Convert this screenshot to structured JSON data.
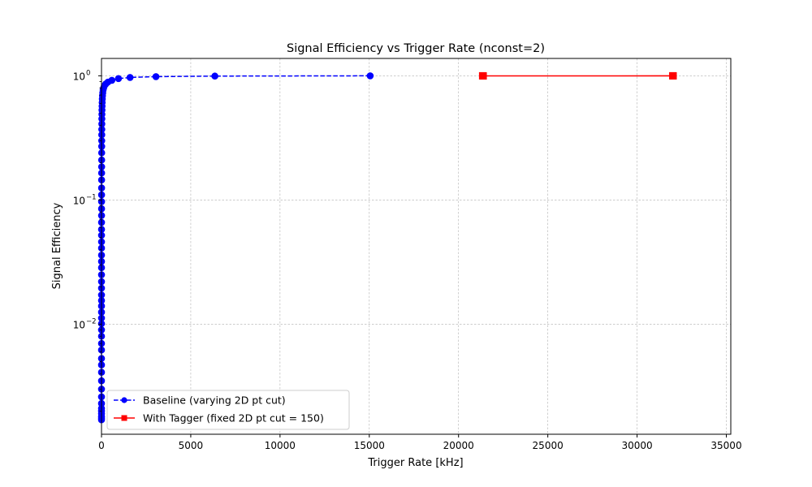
{
  "chart_data": {
    "type": "line",
    "title": "Signal Efficiency vs Trigger Rate (nconst=2)",
    "xlabel": "Trigger Rate [kHz]",
    "ylabel": "Signal Efficiency",
    "xlim": [
      0,
      35250
    ],
    "ylim": [
      0.0013,
      1.38
    ],
    "yscale": "log",
    "grid": true,
    "legend_position": "lower-left",
    "x_ticks": [
      0,
      5000,
      10000,
      15000,
      20000,
      25000,
      30000,
      35000
    ],
    "x_tick_labels": [
      "0",
      "5000",
      "10000",
      "15000",
      "20000",
      "25000",
      "30000",
      "35000"
    ],
    "y_ticks": [
      0.01,
      0.1,
      1
    ],
    "y_tick_labels": [
      "10",
      "10",
      "10"
    ],
    "y_tick_exponents": [
      "−2",
      "−1",
      "0"
    ],
    "series": [
      {
        "name": "Baseline (varying 2D pt cut)",
        "color": "#0000ff",
        "linestyle": "dashed",
        "marker": "circle",
        "x": [
          15050,
          6350,
          3050,
          1600,
          950,
          580,
          360,
          240,
          160,
          120,
          90,
          70,
          55,
          45,
          38,
          32,
          27,
          23,
          20,
          18,
          16,
          14,
          12,
          11,
          10,
          9,
          8,
          7,
          6,
          5,
          4.5,
          4,
          3.5,
          3,
          2.5,
          2,
          1.8,
          1.6,
          1.4,
          1.2,
          1.0,
          0.9,
          0.8,
          0.7,
          0.6,
          0.5,
          0.45,
          0.4,
          0.35,
          0.3,
          0.25,
          0.2,
          0.15,
          0.12,
          0.1,
          0.08,
          0.06,
          0.05,
          0.04,
          0.03,
          0.025,
          0.02,
          0.015,
          0.012,
          0.01,
          0.008,
          0.006,
          0.005
        ],
        "y": [
          1.0,
          0.995,
          0.985,
          0.97,
          0.95,
          0.92,
          0.89,
          0.86,
          0.83,
          0.8,
          0.77,
          0.73,
          0.69,
          0.65,
          0.61,
          0.57,
          0.53,
          0.49,
          0.45,
          0.41,
          0.37,
          0.335,
          0.3,
          0.27,
          0.24,
          0.21,
          0.185,
          0.165,
          0.145,
          0.125,
          0.11,
          0.097,
          0.085,
          0.075,
          0.066,
          0.058,
          0.052,
          0.046,
          0.041,
          0.036,
          0.032,
          0.0285,
          0.025,
          0.022,
          0.0195,
          0.0172,
          0.0155,
          0.014,
          0.0125,
          0.0112,
          0.0101,
          0.009,
          0.008,
          0.007,
          0.0062,
          0.0053,
          0.0047,
          0.0041,
          0.0035,
          0.003,
          0.0026,
          0.0023,
          0.0021,
          0.002,
          0.0019,
          0.0018,
          0.00175,
          0.0017
        ]
      },
      {
        "name": "With Tagger (fixed 2D pt cut = 150)",
        "color": "#ff0000",
        "linestyle": "solid",
        "marker": "square",
        "x": [
          21350,
          21380,
          32000,
          32020
        ],
        "y": [
          1.0,
          0.998,
          1.0,
          0.999
        ]
      }
    ]
  }
}
